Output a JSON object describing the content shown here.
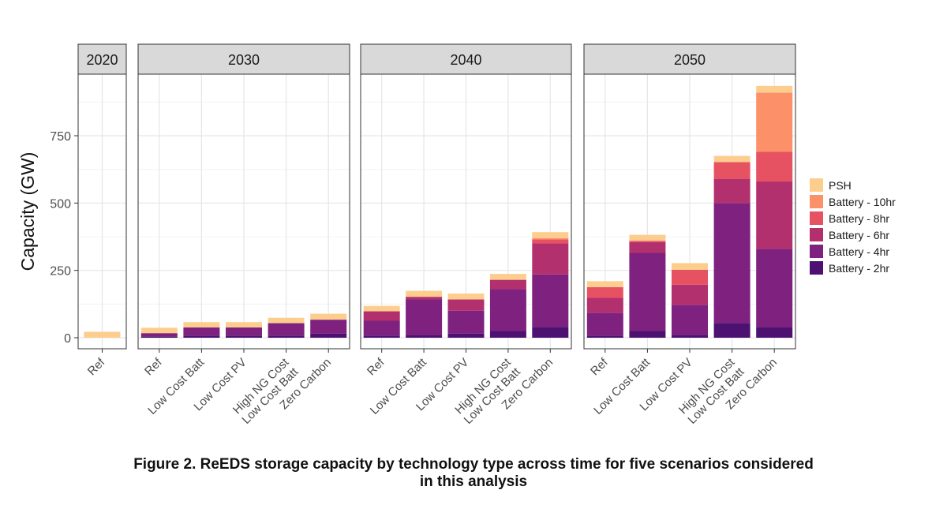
{
  "caption": {
    "line1": "Figure 2. ReEDS storage capacity by technology type across time for five scenarios considered",
    "line2": "in this analysis"
  },
  "chart_data": {
    "type": "bar",
    "stacked": true,
    "faceted": true,
    "ylabel": "Capacity (GW)",
    "xlabel": "",
    "ylim": [
      0,
      950
    ],
    "yticks": [
      0,
      250,
      500,
      750
    ],
    "grid": true,
    "legend_position": "right",
    "series": [
      {
        "name": "Battery - 2hr",
        "color": "#4d1171"
      },
      {
        "name": "Battery - 4hr",
        "color": "#7e217f"
      },
      {
        "name": "Battery - 6hr",
        "color": "#b3306e"
      },
      {
        "name": "Battery - 8hr",
        "color": "#e75263"
      },
      {
        "name": "Battery - 10hr",
        "color": "#fb9069"
      },
      {
        "name": "PSH",
        "color": "#fdcd8e"
      }
    ],
    "legend_order": [
      "PSH",
      "Battery - 10hr",
      "Battery - 8hr",
      "Battery - 6hr",
      "Battery - 4hr",
      "Battery - 2hr"
    ],
    "facets": [
      {
        "title": "2020",
        "bars": [
          {
            "label": "Ref",
            "values": [
              0,
              0,
              0,
              0,
              0,
              22
            ]
          }
        ]
      },
      {
        "title": "2030",
        "bars": [
          {
            "label": "Ref",
            "values": [
              5,
              12,
              0,
              0,
              0,
              20
            ]
          },
          {
            "label": "Low Cost Batt",
            "values": [
              8,
              30,
              0,
              0,
              0,
              20
            ]
          },
          {
            "label": "Low Cost PV",
            "values": [
              8,
              30,
              0,
              0,
              0,
              20
            ]
          },
          {
            "label": "High NG Cost\nLow Cost Batt",
            "values": [
              8,
              46,
              0,
              0,
              0,
              20
            ]
          },
          {
            "label": "Zero Carbon",
            "values": [
              15,
              52,
              0,
              0,
              0,
              22
            ]
          }
        ]
      },
      {
        "title": "2040",
        "bars": [
          {
            "label": "Ref",
            "values": [
              8,
              55,
              35,
              0,
              0,
              20
            ]
          },
          {
            "label": "Low Cost Batt",
            "values": [
              10,
              132,
              10,
              0,
              0,
              22
            ]
          },
          {
            "label": "Low Cost PV",
            "values": [
              15,
              85,
              42,
              0,
              0,
              22
            ]
          },
          {
            "label": "High NG Cost\nLow Cost Batt",
            "values": [
              25,
              155,
              35,
              0,
              0,
              22
            ]
          },
          {
            "label": "Zero Carbon",
            "values": [
              40,
              195,
              115,
              15,
              5,
              22
            ]
          }
        ]
      },
      {
        "title": "2050",
        "bars": [
          {
            "label": "Ref",
            "values": [
              8,
              85,
              55,
              40,
              0,
              22
            ]
          },
          {
            "label": "Low Cost Batt",
            "values": [
              25,
              290,
              40,
              5,
              0,
              22
            ]
          },
          {
            "label": "Low Cost PV",
            "values": [
              10,
              112,
              75,
              55,
              0,
              25
            ]
          },
          {
            "label": "High NG Cost\nLow Cost Batt",
            "values": [
              55,
              445,
              90,
              62,
              0,
              23
            ]
          },
          {
            "label": "Zero Carbon",
            "values": [
              38,
              292,
              250,
              110,
              220,
              25
            ]
          }
        ]
      }
    ]
  }
}
